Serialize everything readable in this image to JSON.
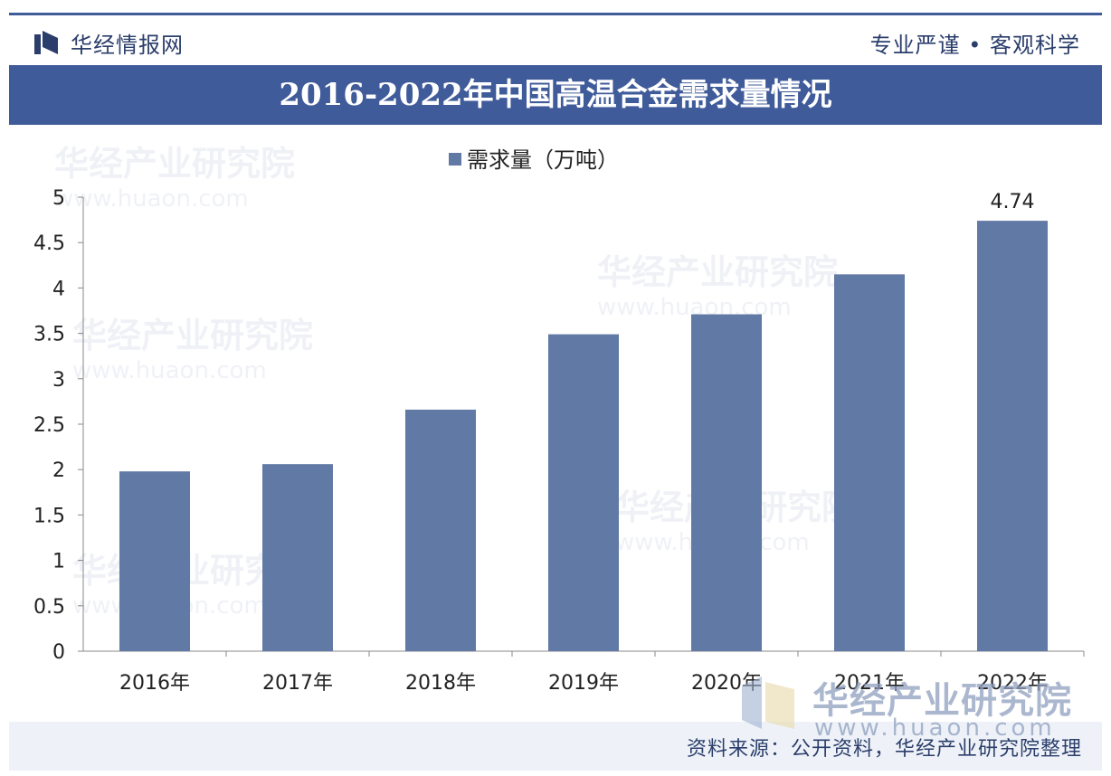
{
  "header": {
    "brand": "华经情报网",
    "slogan": "专业严谨 • 客观科学"
  },
  "watermark": {
    "text": "华经产业研究院",
    "url": "www.huaon.com"
  },
  "footer": {
    "source": "资料来源：公开资料，华经产业研究院整理"
  },
  "colors": {
    "accent": "#3f5b9a",
    "bar": "#6179a5"
  },
  "chart_data": {
    "type": "bar",
    "title": "2016-2022年中国高温合金需求量情况",
    "categories": [
      "2016年",
      "2017年",
      "2018年",
      "2019年",
      "2020年",
      "2021年",
      "2022年"
    ],
    "series": [
      {
        "name": "需求量（万吨）",
        "values": [
          1.98,
          2.06,
          2.66,
          3.49,
          3.71,
          4.15,
          4.74
        ]
      }
    ],
    "data_labels": [
      {
        "category": "2022年",
        "text": "4.74"
      }
    ],
    "ylim": [
      0,
      5
    ],
    "yticks": [
      "0",
      "0.5",
      "1",
      "1.5",
      "2",
      "2.5",
      "3",
      "3.5",
      "4",
      "4.5",
      "5"
    ],
    "legend_position": "top-center",
    "grid": false
  }
}
